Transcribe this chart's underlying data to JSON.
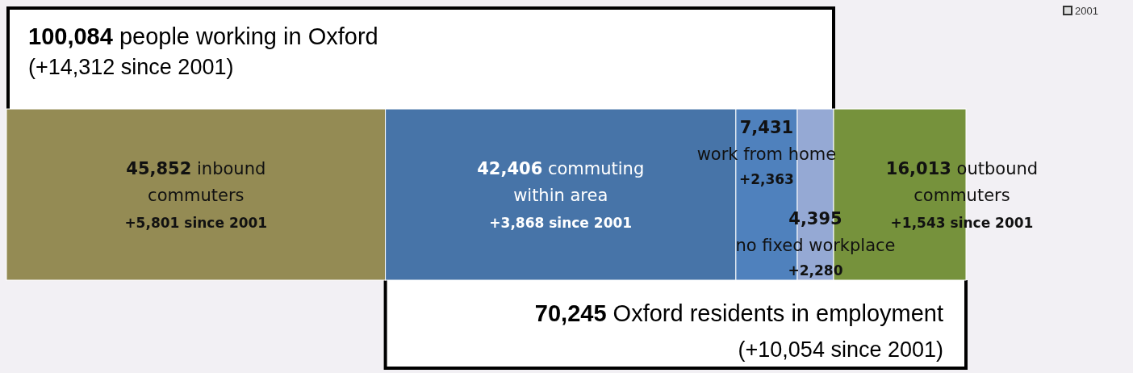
{
  "chart_data": {
    "type": "bar",
    "orientation": "horizontal",
    "stacked": true,
    "title": "100,084 people working in Oxford",
    "subtitle": "(+14,312 since 2001)",
    "categories": [
      null
    ],
    "series": [
      {
        "name": "inbound commuters",
        "color": "#948b54",
        "values": [
          45852
        ],
        "value_labels": [
          "45,852"
        ]
      },
      {
        "name": "commuting within area",
        "color": "#4774a8",
        "values": [
          42406
        ],
        "value_labels": [
          "42,406"
        ]
      },
      {
        "name": "work from home",
        "color": "#4f81bd",
        "values": [
          7431
        ],
        "value_labels": [
          "7,431"
        ]
      },
      {
        "name": "no fixed workplace",
        "color": "#95a9d4",
        "values": [
          4395
        ],
        "value_labels": [
          "4,395"
        ]
      },
      {
        "name": "outbound commuters",
        "color": "#76923c",
        "values": [
          16013
        ],
        "value_labels": [
          "16,013"
        ]
      }
    ],
    "annotations": [
      "+5,801 since 2001",
      "+3,868 since 2001",
      "+2,363",
      "+2,280",
      "+1,543 since 2001",
      "70,245 Oxford residents in employment",
      "(+10,054 since 2001)",
      "2001"
    ]
  }
}
